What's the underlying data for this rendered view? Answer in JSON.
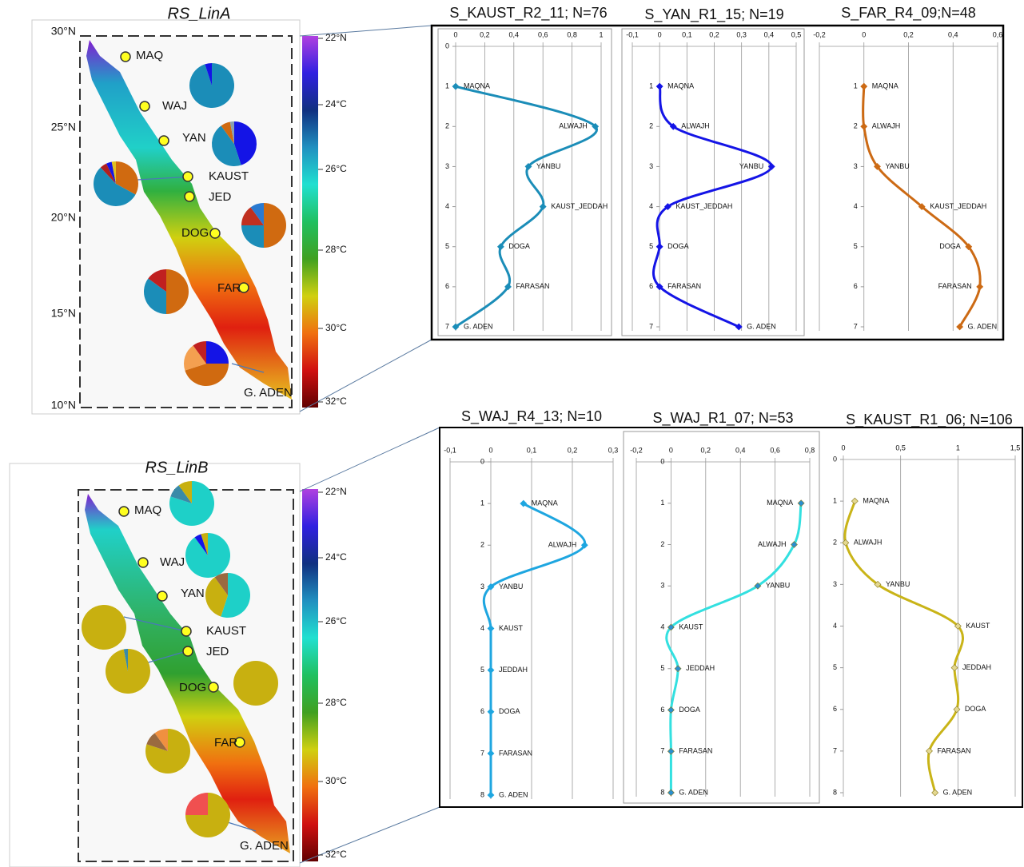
{
  "maps": [
    {
      "title": "RS_LinA",
      "lat_labels": [
        "30°N",
        "25°N",
        "20°N",
        "15°N",
        "10°N"
      ],
      "colorbar_labels": [
        "22°N",
        "24°C",
        "26°C",
        "28°C",
        "30°C",
        "32°C"
      ],
      "stations": [
        "MAQ",
        "WAJ",
        "YAN",
        "KAUST",
        "JED",
        "DOG",
        "FAR",
        "G. ADEN"
      ],
      "pies": [
        {
          "values": [
            95,
            5
          ],
          "colors": [
            "#1b8db8",
            "#1414e6"
          ]
        },
        {
          "values": [
            45,
            45,
            7,
            3
          ],
          "colors": [
            "#1414e6",
            "#1b8db8",
            "#d06a10",
            "#8aa0b0"
          ]
        },
        {
          "values": [
            33,
            55,
            5,
            4,
            3
          ],
          "colors": [
            "#d06a10",
            "#1b8db8",
            "#b02020",
            "#1414e6",
            "#e0c020"
          ]
        },
        {
          "values": [
            50,
            25,
            15,
            10
          ],
          "colors": [
            "#d06a10",
            "#1b8db8",
            "#c03020",
            "#2a7ad0"
          ]
        },
        {
          "values": [
            50,
            35,
            15
          ],
          "colors": [
            "#d06a10",
            "#1b8db8",
            "#c02020"
          ]
        },
        {
          "values": [
            25,
            45,
            20,
            10
          ],
          "colors": [
            "#1414e6",
            "#d06a10",
            "#f4a050",
            "#c02020"
          ]
        }
      ]
    },
    {
      "title": "RS_LinB",
      "colorbar_labels": [
        "22°N",
        "24°C",
        "26°C",
        "28°C",
        "30°C",
        "32°C"
      ],
      "stations": [
        "MAQ",
        "WAJ",
        "YAN",
        "KAUST",
        "JED",
        "DOG",
        "FAR",
        "G. ADEN"
      ],
      "pies": [
        {
          "values": [
            80,
            10,
            10
          ],
          "colors": [
            "#1ed0c8",
            "#3a8aa8",
            "#c8b010"
          ]
        },
        {
          "values": [
            90,
            5,
            5
          ],
          "colors": [
            "#1ed0c8",
            "#1414e6",
            "#c8b010"
          ]
        },
        {
          "values": [
            55,
            35,
            10
          ],
          "colors": [
            "#1ed0c8",
            "#c8b010",
            "#9a6a40"
          ]
        },
        {
          "values": [
            100
          ],
          "colors": [
            "#c8b010"
          ]
        },
        {
          "values": [
            97,
            3
          ],
          "colors": [
            "#c8b010",
            "#3a8aa8"
          ]
        },
        {
          "values": [
            100
          ],
          "colors": [
            "#c8b010"
          ]
        },
        {
          "values": [
            80,
            10,
            10
          ],
          "colors": [
            "#c8b010",
            "#9a6a40",
            "#f09040"
          ]
        },
        {
          "values": [
            75,
            25
          ],
          "colors": [
            "#c8b010",
            "#f05050"
          ]
        }
      ]
    }
  ],
  "chart_data": [
    {
      "type": "line",
      "title": "S_KAUST_R2_11; N=76",
      "color": "#1b8db8",
      "categories": [
        "MAQNA",
        "ALWAJH",
        "YANBU",
        "KAUST_JEDDAH",
        "DOGA",
        "FARASAN",
        "G. ADEN"
      ],
      "y": [
        1,
        2,
        3,
        4,
        5,
        6,
        7
      ],
      "values": [
        0,
        0.96,
        0.5,
        0.6,
        0.31,
        0.36,
        0
      ],
      "xlim": [
        0,
        1
      ],
      "xticks": [
        0,
        {
          "value": 0.2,
          "label": "0,2"
        },
        {
          "value": 0.4,
          "label": "0,4"
        },
        {
          "value": 0.6,
          "label": "0,6"
        },
        {
          "value": 0.8,
          "label": "0,8"
        },
        1
      ],
      "ylim": [
        0,
        7
      ],
      "yticks": [
        0,
        1,
        2,
        3,
        4,
        5,
        6,
        7
      ]
    },
    {
      "type": "line",
      "title": "S_YAN_R1_15; N=19",
      "color": "#1414e6",
      "categories": [
        "MAQNA",
        "ALWAJH",
        "YANBU",
        "KAUST_JEDDAH",
        "DOGA",
        "FARASAN",
        "G. ADEN"
      ],
      "y": [
        1,
        2,
        3,
        4,
        5,
        6,
        7
      ],
      "values": [
        0,
        0.05,
        0.41,
        0.03,
        0,
        0,
        0.29
      ],
      "xlim": [
        -0.1,
        0.5
      ],
      "xticks": [
        {
          "value": -0.1,
          "label": "-0,1"
        },
        0,
        {
          "value": 0.1,
          "label": "0,1"
        },
        {
          "value": 0.2,
          "label": "0,2"
        },
        {
          "value": 0.3,
          "label": "0,3"
        },
        {
          "value": 0.4,
          "label": "0,4"
        },
        {
          "value": 0.5,
          "label": "0,5"
        }
      ],
      "ylim": [
        0,
        7
      ],
      "yticks": [
        1,
        2,
        3,
        4,
        5,
        6,
        7
      ]
    },
    {
      "type": "line",
      "title": "S_FAR_R4_09;N=48",
      "color": "#cc6a14",
      "categories": [
        "MAQNA",
        "ALWAJH",
        "YANBU",
        "KAUST_JEDDAH",
        "DOGA",
        "FARASAN",
        "G. ADEN"
      ],
      "y": [
        1,
        2,
        3,
        4,
        5,
        6,
        7
      ],
      "values": [
        0,
        0,
        0.06,
        0.26,
        0.47,
        0.52,
        0.43
      ],
      "xlim": [
        -0.2,
        0.6
      ],
      "xticks": [
        {
          "value": -0.2,
          "label": "-0,2"
        },
        0,
        {
          "value": 0.2,
          "label": "0,2"
        },
        {
          "value": 0.4,
          "label": "0,4"
        },
        {
          "value": 0.6,
          "label": "0,6"
        }
      ],
      "ylim": [
        0,
        7
      ],
      "yticks": [
        1,
        2,
        3,
        4,
        5,
        6,
        7
      ]
    },
    {
      "type": "line",
      "title": "S_WAJ_R4_13; N=10",
      "color": "#1ea6e0",
      "categories": [
        "MAQNA",
        "ALWAJH",
        "YANBU",
        "KAUST",
        "JEDDAH",
        "DOGA",
        "FARASAN",
        "G. ADEN"
      ],
      "y": [
        1,
        2,
        3,
        4,
        5,
        6,
        7,
        8
      ],
      "values": [
        0.08,
        0.23,
        0,
        0,
        0,
        0,
        0,
        0
      ],
      "xlim": [
        -0.1,
        0.3
      ],
      "xticks": [
        {
          "value": -0.1,
          "label": "-0,1"
        },
        0,
        {
          "value": 0.1,
          "label": "0,1"
        },
        {
          "value": 0.2,
          "label": "0,2"
        },
        {
          "value": 0.3,
          "label": "0,3"
        }
      ],
      "ylim": [
        0,
        8
      ],
      "yticks": [
        0,
        1,
        2,
        3,
        4,
        5,
        6,
        7,
        8
      ]
    },
    {
      "type": "line",
      "title": "S_WAJ_R1_07; N=53",
      "color": "#33e0e0",
      "marker_color": "#2a8fd0",
      "categories": [
        "MAQNA",
        "ALWAJH",
        "YANBU",
        "KAUST",
        "JEDDAH",
        "DOGA",
        "FARASAN",
        "G. ADEN"
      ],
      "y": [
        1,
        2,
        3,
        4,
        5,
        6,
        7,
        8
      ],
      "values": [
        0.75,
        0.71,
        0.5,
        0,
        0.04,
        0,
        0,
        0
      ],
      "xlim": [
        -0.2,
        0.8
      ],
      "xticks": [
        {
          "value": -0.2,
          "label": "-0,2"
        },
        0,
        {
          "value": 0.2,
          "label": "0,2"
        },
        {
          "value": 0.4,
          "label": "0,4"
        },
        {
          "value": 0.6,
          "label": "0,6"
        },
        {
          "value": 0.8,
          "label": "0,8"
        }
      ],
      "ylim": [
        0,
        8
      ],
      "yticks": [
        0,
        1,
        2,
        3,
        4,
        5,
        6,
        7,
        8
      ]
    },
    {
      "type": "line",
      "title": "S_KAUST_R1_06; N=106",
      "color": "#c9b418",
      "marker_color": "#e4d890",
      "categories": [
        "MAQNA",
        "ALWAJH",
        "YANBU",
        "KAUST",
        "JEDDAH",
        "DOGA",
        "FARASAN",
        "G. ADEN"
      ],
      "y": [
        1,
        2,
        3,
        4,
        5,
        6,
        7,
        8
      ],
      "values": [
        0.1,
        0.02,
        0.3,
        1.0,
        0.97,
        0.99,
        0.75,
        0.8
      ],
      "xlim": [
        0,
        1.5
      ],
      "xticks": [
        0,
        {
          "value": 0.5,
          "label": "0,5"
        },
        1,
        {
          "value": 1.5,
          "label": "1,5"
        }
      ],
      "ylim": [
        0,
        8
      ],
      "yticks": [
        0,
        1,
        2,
        3,
        4,
        5,
        6,
        7,
        8
      ]
    }
  ]
}
